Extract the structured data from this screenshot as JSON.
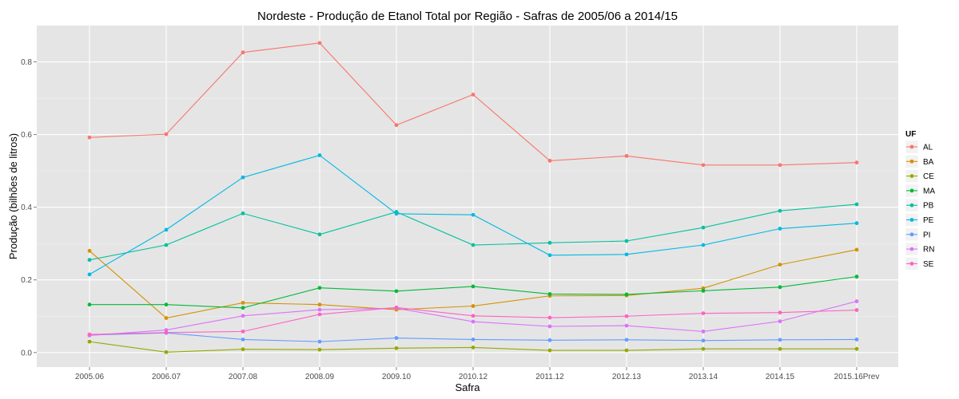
{
  "chart_data": {
    "type": "line",
    "title": "Nordeste  - Produção de Etanol Total por Região - Safras de 2005/06 a 2014/15",
    "xlabel": "Safra",
    "ylabel": "Produção (bilhões de litros)",
    "categories": [
      "2005.06",
      "2006.07",
      "2007.08",
      "2008.09",
      "2009.10",
      "2010.12",
      "2011.12",
      "2012.13",
      "2013.14",
      "2014.15",
      "2015.16Prev"
    ],
    "yticks": [
      0.0,
      0.2,
      0.4,
      0.6,
      0.8
    ],
    "ytick_labels": [
      "0.0",
      "0.2",
      "0.4",
      "0.6",
      "0.8"
    ],
    "ylim": [
      -0.04,
      0.9
    ],
    "grid": true,
    "legend_title": "UF",
    "legend_position": "right",
    "series": [
      {
        "name": "AL",
        "color": "#F8766D",
        "values": [
          0.592,
          0.601,
          0.826,
          0.852,
          0.626,
          0.71,
          0.528,
          0.541,
          0.516,
          0.516,
          0.523
        ]
      },
      {
        "name": "BA",
        "color": "#D39200",
        "values": [
          0.28,
          0.095,
          0.137,
          0.132,
          0.118,
          0.128,
          0.156,
          0.157,
          0.177,
          0.242,
          0.283
        ]
      },
      {
        "name": "CE",
        "color": "#93AA00",
        "values": [
          0.03,
          0.001,
          0.009,
          0.008,
          0.012,
          0.014,
          0.006,
          0.006,
          0.01,
          0.01,
          0.01
        ]
      },
      {
        "name": "MA",
        "color": "#00BA38",
        "values": [
          0.132,
          0.132,
          0.123,
          0.178,
          0.169,
          0.182,
          0.161,
          0.16,
          0.17,
          0.18,
          0.209
        ]
      },
      {
        "name": "PB",
        "color": "#00C19F",
        "values": [
          0.255,
          0.296,
          0.383,
          0.325,
          0.387,
          0.296,
          0.302,
          0.307,
          0.344,
          0.39,
          0.408
        ]
      },
      {
        "name": "PE",
        "color": "#00B9E3",
        "values": [
          0.215,
          0.338,
          0.482,
          0.543,
          0.382,
          0.379,
          0.268,
          0.27,
          0.296,
          0.341,
          0.356
        ]
      },
      {
        "name": "PI",
        "color": "#619CFF",
        "values": [
          0.048,
          0.054,
          0.036,
          0.03,
          0.04,
          0.036,
          0.034,
          0.035,
          0.033,
          0.035,
          0.036
        ]
      },
      {
        "name": "RN",
        "color": "#DB72FB",
        "values": [
          0.047,
          0.062,
          0.101,
          0.118,
          0.122,
          0.085,
          0.072,
          0.074,
          0.058,
          0.086,
          0.141
        ]
      },
      {
        "name": "SE",
        "color": "#FF61C3",
        "values": [
          0.05,
          0.055,
          0.058,
          0.105,
          0.124,
          0.101,
          0.096,
          0.1,
          0.108,
          0.11,
          0.117
        ]
      }
    ]
  }
}
